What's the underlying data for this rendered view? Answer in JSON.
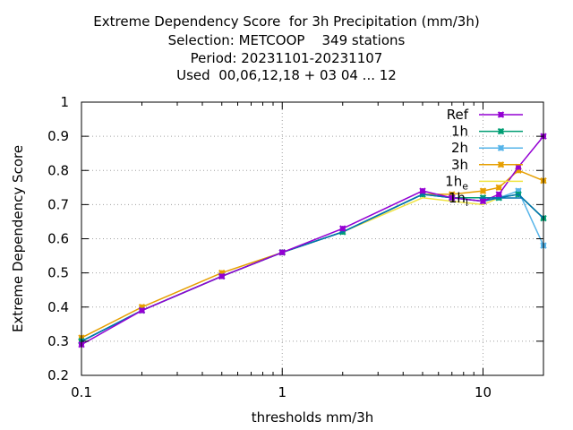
{
  "chart_data": {
    "type": "line",
    "title_lines": [
      "Extreme Dependency Score  for 3h Precipitation (mm/3h)",
      "Selection: METCOOP    349 stations",
      "Period: 20231101-20231107",
      "Used  00,06,12,18 + 03 04 ... 12"
    ],
    "xlabel": "thresholds mm/3h",
    "ylabel": "Extreme Dependency Score",
    "x_scale": "log",
    "xlim": [
      0.1,
      20
    ],
    "ylim": [
      0.2,
      1.0
    ],
    "x_ticks": [
      0.1,
      1,
      10
    ],
    "x_tick_labels": [
      "0.1",
      "1",
      "10"
    ],
    "y_ticks": [
      0.2,
      0.3,
      0.4,
      0.5,
      0.6,
      0.7,
      0.8,
      0.9,
      1.0
    ],
    "y_tick_labels": [
      "0.2",
      "0.3",
      "0.4",
      "0.5",
      "0.6",
      "0.7",
      "0.8",
      "0.9",
      "1"
    ],
    "grid": true,
    "legend_position": "top-right",
    "x": [
      0.1,
      0.2,
      0.5,
      1,
      2,
      5,
      7,
      10,
      12,
      15,
      20
    ],
    "series": [
      {
        "name": "Ref",
        "color": "#9400d3",
        "marker": true,
        "values": [
          0.29,
          0.39,
          0.49,
          0.56,
          0.63,
          0.74,
          0.72,
          0.71,
          0.73,
          0.81,
          0.9
        ]
      },
      {
        "name": "1h",
        "color": "#009e73",
        "marker": true,
        "values": [
          0.3,
          0.39,
          0.49,
          0.56,
          0.62,
          0.73,
          0.72,
          0.72,
          0.72,
          0.73,
          0.66
        ]
      },
      {
        "name": "2h",
        "color": "#56b4e9",
        "marker": true,
        "values": [
          0.3,
          0.39,
          0.49,
          0.56,
          0.62,
          0.73,
          0.72,
          0.71,
          0.72,
          0.74,
          0.58
        ]
      },
      {
        "name": "3h",
        "color": "#e69f00",
        "marker": true,
        "values": [
          0.31,
          0.4,
          0.5,
          0.56,
          0.62,
          0.73,
          0.73,
          0.74,
          0.75,
          0.8,
          0.77
        ]
      },
      {
        "name": "1h",
        "name_sub": "e",
        "color": "#f0e442",
        "marker": false,
        "values": [
          0.3,
          0.39,
          0.49,
          0.56,
          0.62,
          0.72,
          0.71,
          0.7,
          0.72,
          0.73,
          0.66
        ]
      },
      {
        "name": "1h",
        "name_sub": "l",
        "color": "#0072b2",
        "marker": false,
        "values": [
          0.3,
          0.39,
          0.49,
          0.56,
          0.62,
          0.73,
          0.72,
          0.71,
          0.72,
          0.73,
          0.66
        ]
      }
    ]
  }
}
